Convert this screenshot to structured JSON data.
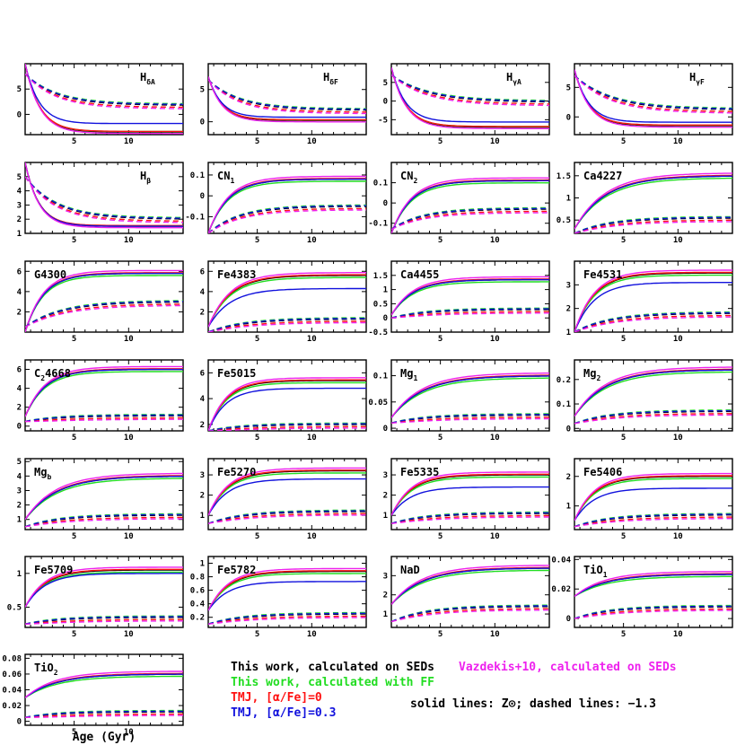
{
  "colors": {
    "black": "#000000",
    "green": "#22dd22",
    "red": "#ff1111",
    "blue": "#1111dd",
    "magenta": "#ee22ee"
  },
  "legend": {
    "sed": "This work, calculated on SEDs",
    "ff": "This work, calculated with FF",
    "tmj0": "TMJ, [α/Fe]=0",
    "tmj03": "TMJ, [α/Fe]=0.3",
    "vaz": "Vazdekis+10, calculated on SEDs",
    "lines": "solid lines: Z⊙; dashed lines: −1.3"
  },
  "xaxis": {
    "label": "Age (Gyr)",
    "ticks": [
      "5",
      "10"
    ]
  },
  "chart_data": [
    {
      "type": "line",
      "title": "Hδ_A",
      "label_main": "H",
      "label_sub": "δA",
      "yticks": [
        "5",
        "0"
      ],
      "ylim": [
        -4,
        10
      ],
      "shape": "decreasing",
      "solid": {
        "s": 10,
        "e": -3.5,
        "k": 0.75
      },
      "dashed": {
        "s": 8,
        "e": 1.8,
        "k": 0.35
      },
      "blue_solid_offset": 1.7
    },
    {
      "type": "line",
      "title": "Hδ_F",
      "label_main": "H",
      "label_sub": "δF",
      "yticks": [
        "5",
        "0"
      ],
      "ylim": [
        -2,
        9
      ],
      "shape": "decreasing",
      "solid": {
        "s": 7,
        "e": 0.2,
        "k": 0.8
      },
      "dashed": {
        "s": 6.5,
        "e": 1.8,
        "k": 0.35
      },
      "blue_solid_offset": 0.5
    },
    {
      "type": "line",
      "title": "Hγ_A",
      "label_main": "H",
      "label_sub": "γA",
      "yticks": [
        "5",
        "0",
        "-5"
      ],
      "ylim": [
        -9,
        10
      ],
      "shape": "decreasing",
      "solid": {
        "s": 9,
        "e": -7,
        "k": 0.75
      },
      "dashed": {
        "s": 7,
        "e": -0.3,
        "k": 0.3
      },
      "blue_solid_offset": 1.4
    },
    {
      "type": "line",
      "title": "Hγ_F",
      "label_main": "H",
      "label_sub": "γF",
      "yticks": [
        "5",
        "0"
      ],
      "ylim": [
        -3,
        9
      ],
      "shape": "decreasing",
      "solid": {
        "s": 8,
        "e": -1.5,
        "k": 0.75
      },
      "dashed": {
        "s": 7,
        "e": 1.2,
        "k": 0.3
      },
      "blue_solid_offset": 0.6
    },
    {
      "type": "line",
      "title": "Hβ",
      "label_main": "H",
      "label_sub": "β",
      "yticks": [
        "5",
        "4",
        "3",
        "2",
        "1"
      ],
      "ylim": [
        1,
        6
      ],
      "shape": "decreasing",
      "solid": {
        "s": 6,
        "e": 1.5,
        "k": 0.8
      },
      "dashed": {
        "s": 5,
        "e": 2.0,
        "k": 0.35
      },
      "blue_solid_offset": 0
    },
    {
      "type": "line",
      "title": "CN_1",
      "label_main": "CN",
      "label_sub": "1",
      "yticks": [
        "0.1",
        "0",
        "-0.1"
      ],
      "ylim": [
        -0.18,
        0.16
      ],
      "shape": "increasing",
      "solid": {
        "s": -0.18,
        "e": 0.08,
        "k": 0.55
      },
      "dashed": {
        "s": -0.18,
        "e": -0.05,
        "k": 0.35
      },
      "blue_solid_offset": 0
    },
    {
      "type": "line",
      "title": "CN_2",
      "label_main": "CN",
      "label_sub": "2",
      "yticks": [
        "0.1",
        "0",
        "-0.1"
      ],
      "ylim": [
        -0.15,
        0.2
      ],
      "shape": "increasing",
      "solid": {
        "s": -0.15,
        "e": 0.11,
        "k": 0.55
      },
      "dashed": {
        "s": -0.13,
        "e": -0.03,
        "k": 0.35
      },
      "blue_solid_offset": 0
    },
    {
      "type": "line",
      "title": "Ca4227",
      "label_main": "Ca4227",
      "label_sub": "",
      "yticks": [
        "1.5",
        "1",
        "0.5"
      ],
      "ylim": [
        0.2,
        1.8
      ],
      "shape": "increasing",
      "solid": {
        "s": 0.3,
        "e": 1.5,
        "k": 0.35
      },
      "dashed": {
        "s": 0.2,
        "e": 0.55,
        "k": 0.3
      },
      "blue_solid_offset": 0
    },
    {
      "type": "line",
      "title": "G4300",
      "label_main": "G4300",
      "label_sub": "",
      "yticks": [
        "6",
        "4",
        "2"
      ],
      "ylim": [
        0,
        7
      ],
      "shape": "increasing",
      "solid": {
        "s": 0,
        "e": 5.8,
        "k": 0.6
      },
      "dashed": {
        "s": 0.5,
        "e": 3.0,
        "k": 0.3
      },
      "blue_solid_offset": 0
    },
    {
      "type": "line",
      "title": "Fe4383",
      "label_main": "Fe4383",
      "label_sub": "",
      "yticks": [
        "6",
        "4",
        "2"
      ],
      "ylim": [
        0,
        7
      ],
      "shape": "increasing",
      "solid": {
        "s": 0.5,
        "e": 5.6,
        "k": 0.5
      },
      "dashed": {
        "s": 0,
        "e": 1.3,
        "k": 0.3
      },
      "blue_solid_offset": -1.3
    },
    {
      "type": "line",
      "title": "Ca4455",
      "label_main": "Ca4455",
      "label_sub": "",
      "yticks": [
        "1.5",
        "1",
        "0.5",
        "0",
        "-0.5"
      ],
      "ylim": [
        -0.5,
        2
      ],
      "shape": "increasing",
      "solid": {
        "s": 0.1,
        "e": 1.35,
        "k": 0.5
      },
      "dashed": {
        "s": 0,
        "e": 0.3,
        "k": 0.3
      },
      "blue_solid_offset": 0
    },
    {
      "type": "line",
      "title": "Fe4531",
      "label_main": "Fe4531",
      "label_sub": "",
      "yticks": [
        "3",
        "2",
        "1"
      ],
      "ylim": [
        1,
        4
      ],
      "shape": "increasing",
      "solid": {
        "s": 1,
        "e": 3.5,
        "k": 0.55
      },
      "dashed": {
        "s": 1,
        "e": 1.8,
        "k": 0.3
      },
      "blue_solid_offset": -0.4
    },
    {
      "type": "line",
      "title": "C_24668",
      "label_main": "C",
      "label_sub": "2",
      "label_tail": "4668",
      "yticks": [
        "6",
        "4",
        "2",
        "0"
      ],
      "ylim": [
        -0.5,
        7
      ],
      "shape": "increasing",
      "solid": {
        "s": 1,
        "e": 6.0,
        "k": 0.55
      },
      "dashed": {
        "s": 0.5,
        "e": 1.1,
        "k": 0.3
      },
      "blue_solid_offset": 0
    },
    {
      "type": "line",
      "title": "Fe5015",
      "label_main": "Fe5015",
      "label_sub": "",
      "yticks": [
        "6",
        "4",
        "2"
      ],
      "ylim": [
        1.5,
        7
      ],
      "shape": "increasing",
      "solid": {
        "s": 1.5,
        "e": 5.4,
        "k": 0.6
      },
      "dashed": {
        "s": 1.5,
        "e": 2.0,
        "k": 0.3
      },
      "blue_solid_offset": -0.6
    },
    {
      "type": "line",
      "title": "Mg_1",
      "label_main": "Mg",
      "label_sub": "1",
      "yticks": [
        "0.1",
        "0.05",
        "0"
      ],
      "ylim": [
        -0.005,
        0.13
      ],
      "shape": "increasing",
      "solid": {
        "s": 0.02,
        "e": 0.1,
        "k": 0.35
      },
      "dashed": {
        "s": 0.01,
        "e": 0.025,
        "k": 0.3
      },
      "blue_solid_offset": 0
    },
    {
      "type": "line",
      "title": "Mg_2",
      "label_main": "Mg",
      "label_sub": "2",
      "yticks": [
        "0.2",
        "0.1",
        "0"
      ],
      "ylim": [
        -0.01,
        0.28
      ],
      "shape": "increasing",
      "solid": {
        "s": 0.05,
        "e": 0.24,
        "k": 0.35
      },
      "dashed": {
        "s": 0.02,
        "e": 0.07,
        "k": 0.3
      },
      "blue_solid_offset": 0
    },
    {
      "type": "line",
      "title": "Mg_b",
      "label_main": "Mg",
      "label_sub": "b",
      "yticks": [
        "5",
        "4",
        "3",
        "2",
        "1"
      ],
      "ylim": [
        0.3,
        5.2
      ],
      "shape": "increasing",
      "solid": {
        "s": 1,
        "e": 4.0,
        "k": 0.35
      },
      "dashed": {
        "s": 0.5,
        "e": 1.3,
        "k": 0.3
      },
      "blue_solid_offset": 0
    },
    {
      "type": "line",
      "title": "Fe5270",
      "label_main": "Fe5270",
      "label_sub": "",
      "yticks": [
        "3",
        "2",
        "1"
      ],
      "ylim": [
        0.3,
        3.8
      ],
      "shape": "increasing",
      "solid": {
        "s": 1,
        "e": 3.2,
        "k": 0.55
      },
      "dashed": {
        "s": 0.6,
        "e": 1.2,
        "k": 0.3
      },
      "blue_solid_offset": -0.4
    },
    {
      "type": "line",
      "title": "Fe5335",
      "label_main": "Fe5335",
      "label_sub": "",
      "yticks": [
        "3",
        "2",
        "1"
      ],
      "ylim": [
        0.3,
        3.8
      ],
      "shape": "increasing",
      "solid": {
        "s": 1,
        "e": 3.0,
        "k": 0.55
      },
      "dashed": {
        "s": 0.6,
        "e": 1.1,
        "k": 0.3
      },
      "blue_solid_offset": -0.6
    },
    {
      "type": "line",
      "title": "Fe5406",
      "label_main": "Fe5406",
      "label_sub": "",
      "yticks": [
        "2",
        "1"
      ],
      "ylim": [
        0.2,
        2.6
      ],
      "shape": "increasing",
      "solid": {
        "s": 0.5,
        "e": 2.0,
        "k": 0.55
      },
      "dashed": {
        "s": 0.3,
        "e": 0.7,
        "k": 0.3
      },
      "blue_solid_offset": -0.4
    },
    {
      "type": "line",
      "title": "Fe5709",
      "label_main": "Fe5709",
      "label_sub": "",
      "yticks": [
        "1",
        "0.5"
      ],
      "ylim": [
        0.2,
        1.25
      ],
      "shape": "increasing",
      "solid": {
        "s": 0.5,
        "e": 1.05,
        "k": 0.55
      },
      "dashed": {
        "s": 0.25,
        "e": 0.35,
        "k": 0.3
      },
      "blue_solid_offset": -0.05
    },
    {
      "type": "line",
      "title": "Fe5782",
      "label_main": "Fe5782",
      "label_sub": "",
      "yticks": [
        "1",
        "0.8",
        "0.6",
        "0.4",
        "0.2"
      ],
      "ylim": [
        0.05,
        1.1
      ],
      "shape": "increasing",
      "solid": {
        "s": 0.3,
        "e": 0.88,
        "k": 0.55
      },
      "dashed": {
        "s": 0.1,
        "e": 0.25,
        "k": 0.3
      },
      "blue_solid_offset": -0.15
    },
    {
      "type": "line",
      "title": "NaD",
      "label_main": "NaD",
      "label_sub": "",
      "yticks": [
        "3",
        "2",
        "1"
      ],
      "ylim": [
        0.3,
        4
      ],
      "shape": "increasing",
      "solid": {
        "s": 1.5,
        "e": 3.4,
        "k": 0.35
      },
      "dashed": {
        "s": 0.6,
        "e": 1.4,
        "k": 0.3
      },
      "blue_solid_offset": 0
    },
    {
      "type": "line",
      "title": "TiO_1",
      "label_main": "TiO",
      "label_sub": "1",
      "yticks": [
        "0.04",
        "0.02",
        "0"
      ],
      "ylim": [
        -0.006,
        0.042
      ],
      "shape": "increasing",
      "solid": {
        "s": 0.015,
        "e": 0.03,
        "k": 0.35
      },
      "dashed": {
        "s": 0.0,
        "e": 0.008,
        "k": 0.3
      },
      "blue_solid_offset": 0
    },
    {
      "type": "line",
      "title": "TiO_2",
      "label_main": "TiO",
      "label_sub": "2",
      "yticks": [
        "0.08",
        "0.06",
        "0.04",
        "0.02",
        "0"
      ],
      "ylim": [
        -0.005,
        0.085
      ],
      "shape": "increasing",
      "solid": {
        "s": 0.03,
        "e": 0.06,
        "k": 0.35
      },
      "dashed": {
        "s": 0.005,
        "e": 0.012,
        "k": 0.3
      },
      "blue_solid_offset": 0
    }
  ]
}
